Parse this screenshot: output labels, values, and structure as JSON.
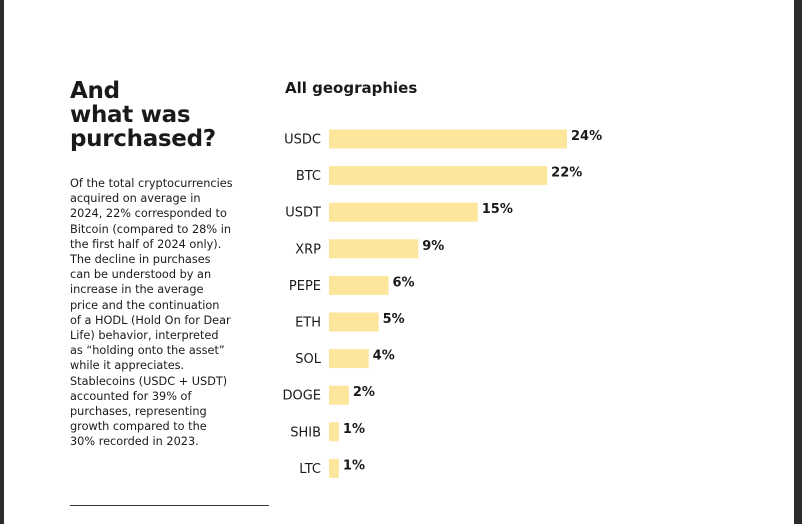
{
  "heading": {
    "lines": [
      "And",
      "what was",
      "purchased?"
    ]
  },
  "body_lines": [
    "Of the total cryptocurrencies",
    "acquired on average in",
    "2024, 22% corresponded to",
    "Bitcoin (compared to 28% in",
    "the first half of 2024 only).",
    "The decline in purchases",
    "can be understood by an",
    "increase in the average",
    "price and the continuation",
    "of a HODL (Hold On for Dear",
    "Life) behavior, interpreted",
    "as “holding onto the asset”",
    "while it appreciates.",
    "Stablecoins (USDC + USDT)",
    "accounted for 39% of",
    "purchases, representing",
    "growth compared to the",
    "30% recorded in 2023."
  ],
  "chart_data": {
    "type": "bar",
    "orientation": "horizontal",
    "title": "All geographies",
    "categories": [
      "USDC",
      "BTC",
      "USDT",
      "XRP",
      "PEPE",
      "ETH",
      "SOL",
      "DOGE",
      "SHIB",
      "LTC"
    ],
    "values": [
      24,
      22,
      15,
      9,
      6,
      5,
      4,
      2,
      1,
      1
    ],
    "data_labels": [
      "24%",
      "22%",
      "15%",
      "9%",
      "6%",
      "5%",
      "4%",
      "2%",
      "1%",
      "1%"
    ],
    "unit": "%",
    "xlim": [
      0,
      24
    ],
    "bar_color": "#fee59c",
    "grid": false
  }
}
